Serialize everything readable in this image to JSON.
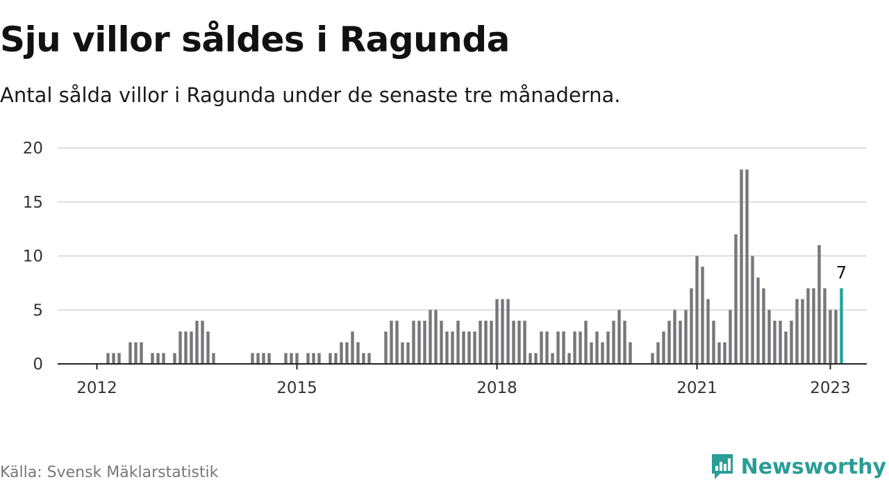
{
  "title": "Sju villor såldes i Ragunda",
  "subtitle": "Antal sålda villor i Ragunda under de senaste tre månaderna.",
  "source": "Källa: Svensk Mäklarstatistik",
  "brand": {
    "name": "Newsworthy",
    "icon": "newsworthy-chart-logo-icon",
    "color": "#2a9d96"
  },
  "colors": {
    "bar": "#77767b",
    "highlight": "#23a39b",
    "grid": "#dddddd",
    "axis": "#222222"
  },
  "chart_data": {
    "type": "bar",
    "title": "Sju villor såldes i Ragunda",
    "xlabel": "",
    "ylabel": "",
    "ylim": [
      0,
      20
    ],
    "yticks": [
      0,
      5,
      10,
      15,
      20
    ],
    "xticks": [
      {
        "label": "2012",
        "x": "2012-01"
      },
      {
        "label": "2015",
        "x": "2015-01"
      },
      {
        "label": "2018",
        "x": "2018-01"
      },
      {
        "label": "2021",
        "x": "2021-01"
      },
      {
        "label": "2023",
        "x": "2023-01"
      }
    ],
    "grid": true,
    "legend": "none",
    "series": [
      {
        "values": [
          [
            "2012-03",
            1
          ],
          [
            "2012-04",
            1
          ],
          [
            "2012-05",
            1
          ],
          [
            "2012-07",
            2
          ],
          [
            "2012-08",
            2
          ],
          [
            "2012-09",
            2
          ],
          [
            "2012-11",
            1
          ],
          [
            "2012-12",
            1
          ],
          [
            "2013-01",
            1
          ],
          [
            "2013-03",
            1
          ],
          [
            "2013-04",
            3
          ],
          [
            "2013-05",
            3
          ],
          [
            "2013-06",
            3
          ],
          [
            "2013-07",
            4
          ],
          [
            "2013-08",
            4
          ],
          [
            "2013-09",
            3
          ],
          [
            "2013-10",
            1
          ],
          [
            "2014-05",
            1
          ],
          [
            "2014-06",
            1
          ],
          [
            "2014-07",
            1
          ],
          [
            "2014-08",
            1
          ],
          [
            "2014-11",
            1
          ],
          [
            "2014-12",
            1
          ],
          [
            "2015-01",
            1
          ],
          [
            "2015-03",
            1
          ],
          [
            "2015-04",
            1
          ],
          [
            "2015-05",
            1
          ],
          [
            "2015-07",
            1
          ],
          [
            "2015-08",
            1
          ],
          [
            "2015-09",
            2
          ],
          [
            "2015-10",
            2
          ],
          [
            "2015-11",
            3
          ],
          [
            "2015-12",
            2
          ],
          [
            "2016-01",
            1
          ],
          [
            "2016-02",
            1
          ],
          [
            "2016-05",
            3
          ],
          [
            "2016-06",
            4
          ],
          [
            "2016-07",
            4
          ],
          [
            "2016-08",
            2
          ],
          [
            "2016-09",
            2
          ],
          [
            "2016-10",
            4
          ],
          [
            "2016-11",
            4
          ],
          [
            "2016-12",
            4
          ],
          [
            "2017-01",
            5
          ],
          [
            "2017-02",
            5
          ],
          [
            "2017-03",
            4
          ],
          [
            "2017-04",
            3
          ],
          [
            "2017-05",
            3
          ],
          [
            "2017-06",
            4
          ],
          [
            "2017-07",
            3
          ],
          [
            "2017-08",
            3
          ],
          [
            "2017-09",
            3
          ],
          [
            "2017-10",
            4
          ],
          [
            "2017-11",
            4
          ],
          [
            "2017-12",
            4
          ],
          [
            "2018-01",
            6
          ],
          [
            "2018-02",
            6
          ],
          [
            "2018-03",
            6
          ],
          [
            "2018-04",
            4
          ],
          [
            "2018-05",
            4
          ],
          [
            "2018-06",
            4
          ],
          [
            "2018-07",
            1
          ],
          [
            "2018-08",
            1
          ],
          [
            "2018-09",
            3
          ],
          [
            "2018-10",
            3
          ],
          [
            "2018-11",
            1
          ],
          [
            "2018-12",
            3
          ],
          [
            "2019-01",
            3
          ],
          [
            "2019-02",
            1
          ],
          [
            "2019-03",
            3
          ],
          [
            "2019-04",
            3
          ],
          [
            "2019-05",
            4
          ],
          [
            "2019-06",
            2
          ],
          [
            "2019-07",
            3
          ],
          [
            "2019-08",
            2
          ],
          [
            "2019-09",
            3
          ],
          [
            "2019-10",
            4
          ],
          [
            "2019-11",
            5
          ],
          [
            "2019-12",
            4
          ],
          [
            "2020-01",
            2
          ],
          [
            "2020-05",
            1
          ],
          [
            "2020-06",
            2
          ],
          [
            "2020-07",
            3
          ],
          [
            "2020-08",
            4
          ],
          [
            "2020-09",
            5
          ],
          [
            "2020-10",
            4
          ],
          [
            "2020-11",
            5
          ],
          [
            "2020-12",
            7
          ],
          [
            "2021-01",
            10
          ],
          [
            "2021-02",
            9
          ],
          [
            "2021-03",
            6
          ],
          [
            "2021-04",
            4
          ],
          [
            "2021-05",
            2
          ],
          [
            "2021-06",
            2
          ],
          [
            "2021-07",
            5
          ],
          [
            "2021-08",
            12
          ],
          [
            "2021-09",
            18
          ],
          [
            "2021-10",
            18
          ],
          [
            "2021-11",
            10
          ],
          [
            "2021-12",
            8
          ],
          [
            "2022-01",
            7
          ],
          [
            "2022-02",
            5
          ],
          [
            "2022-03",
            4
          ],
          [
            "2022-04",
            4
          ],
          [
            "2022-05",
            3
          ],
          [
            "2022-06",
            4
          ],
          [
            "2022-07",
            6
          ],
          [
            "2022-08",
            6
          ],
          [
            "2022-09",
            7
          ],
          [
            "2022-10",
            7
          ],
          [
            "2022-11",
            11
          ],
          [
            "2022-12",
            7
          ],
          [
            "2023-01",
            5
          ],
          [
            "2023-02",
            5
          ],
          [
            "2023-03",
            7
          ]
        ]
      }
    ],
    "annotations": [
      {
        "x": "2023-03",
        "y": 7,
        "text": "7"
      }
    ]
  }
}
